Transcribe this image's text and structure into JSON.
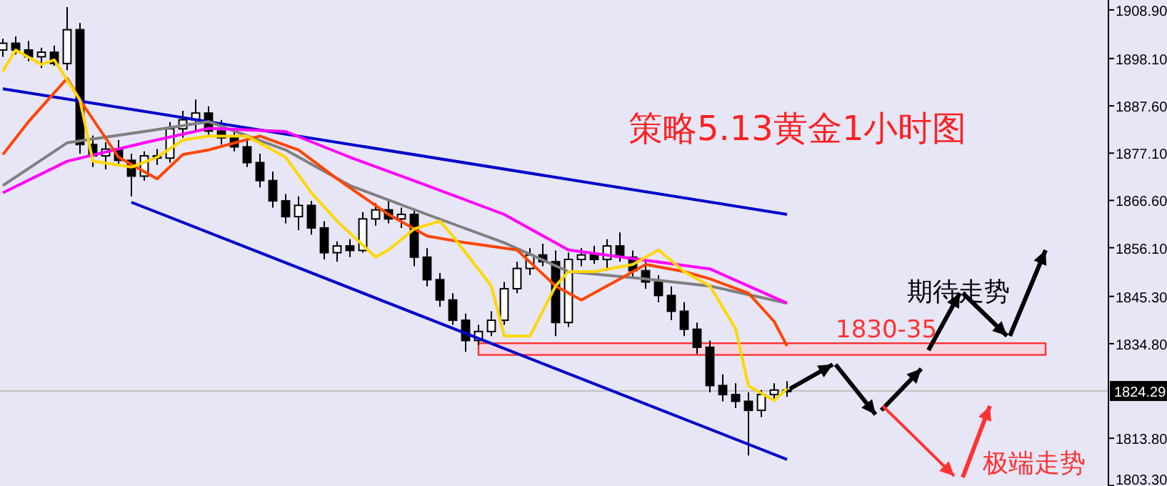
{
  "chart_data": {
    "type": "candlestick",
    "title": "策略5.13黄金1小时图",
    "categories": [
      null,
      null,
      null,
      null,
      null,
      null,
      null,
      null,
      null,
      null,
      null,
      null,
      null,
      null,
      null,
      null,
      null,
      null,
      null,
      null,
      null,
      null,
      null,
      null,
      null,
      null,
      null,
      null,
      null,
      null,
      null,
      null,
      null,
      null,
      null,
      null,
      null,
      null,
      null,
      null,
      null,
      null,
      null,
      null,
      null,
      null,
      null,
      null,
      null,
      null,
      null,
      null,
      null,
      null,
      null,
      null,
      null,
      null,
      null,
      null,
      null,
      null
    ],
    "ohlc": [
      [
        1900.0,
        1902.5,
        1898.5,
        1901.5
      ],
      [
        1901.5,
        1903.0,
        1899.0,
        1900.0
      ],
      [
        1900.0,
        1902.0,
        1897.5,
        1898.5
      ],
      [
        1898.5,
        1900.5,
        1896.0,
        1899.5
      ],
      [
        1899.5,
        1901.0,
        1896.5,
        1897.0
      ],
      [
        1897.0,
        1909.5,
        1895.5,
        1904.5
      ],
      [
        1904.5,
        1906.0,
        1877.0,
        1879.0
      ],
      [
        1879.0,
        1881.0,
        1874.0,
        1876.5
      ],
      [
        1876.5,
        1879.5,
        1873.5,
        1878.0
      ],
      [
        1878.0,
        1880.0,
        1874.5,
        1875.5
      ],
      [
        1875.5,
        1877.0,
        1867.5,
        1872.0
      ],
      [
        1872.0,
        1877.5,
        1871.0,
        1876.5
      ],
      [
        1876.5,
        1878.0,
        1874.5,
        1876.0
      ],
      [
        1876.0,
        1884.0,
        1875.0,
        1882.5
      ],
      [
        1882.5,
        1886.5,
        1880.5,
        1884.5
      ],
      [
        1884.5,
        1889.0,
        1882.0,
        1886.0
      ],
      [
        1886.0,
        1887.5,
        1881.0,
        1882.0
      ],
      [
        1882.0,
        1884.5,
        1879.0,
        1880.5
      ],
      [
        1880.5,
        1882.0,
        1877.5,
        1878.5
      ],
      [
        1878.5,
        1880.0,
        1874.0,
        1875.0
      ],
      [
        1875.0,
        1877.0,
        1869.5,
        1871.0
      ],
      [
        1871.0,
        1873.0,
        1865.0,
        1866.5
      ],
      [
        1866.5,
        1868.0,
        1861.5,
        1863.0
      ],
      [
        1863.0,
        1867.5,
        1860.0,
        1865.5
      ],
      [
        1865.5,
        1866.5,
        1859.0,
        1860.5
      ],
      [
        1860.5,
        1862.0,
        1853.5,
        1855.0
      ],
      [
        1855.0,
        1857.5,
        1853.0,
        1856.5
      ],
      [
        1856.5,
        1858.0,
        1854.0,
        1855.5
      ],
      [
        1855.5,
        1864.0,
        1855.0,
        1862.5
      ],
      [
        1862.5,
        1866.0,
        1861.0,
        1864.5
      ],
      [
        1864.5,
        1866.5,
        1861.5,
        1862.5
      ],
      [
        1862.5,
        1865.0,
        1860.5,
        1863.5
      ],
      [
        1863.5,
        1864.5,
        1852.0,
        1854.0
      ],
      [
        1854.0,
        1856.0,
        1847.5,
        1849.0
      ],
      [
        1849.0,
        1850.5,
        1843.0,
        1844.5
      ],
      [
        1844.5,
        1846.0,
        1839.0,
        1840.0
      ],
      [
        1840.0,
        1841.5,
        1833.0,
        1835.5
      ],
      [
        1835.5,
        1839.0,
        1834.5,
        1837.5
      ],
      [
        1837.5,
        1842.0,
        1836.5,
        1840.0
      ],
      [
        1840.0,
        1848.5,
        1839.0,
        1847.0
      ],
      [
        1847.0,
        1853.0,
        1846.0,
        1851.5
      ],
      [
        1851.5,
        1856.0,
        1850.0,
        1854.5
      ],
      [
        1854.5,
        1857.0,
        1852.0,
        1853.0
      ],
      [
        1853.0,
        1855.5,
        1836.5,
        1839.5
      ],
      [
        1839.5,
        1855.0,
        1838.5,
        1853.5
      ],
      [
        1853.5,
        1856.0,
        1852.0,
        1854.5
      ],
      [
        1854.5,
        1856.5,
        1852.5,
        1853.5
      ],
      [
        1853.5,
        1858.0,
        1851.0,
        1856.5
      ],
      [
        1856.5,
        1859.5,
        1853.0,
        1854.0
      ],
      [
        1854.0,
        1855.5,
        1849.5,
        1851.0
      ],
      [
        1851.0,
        1853.0,
        1847.0,
        1848.5
      ],
      [
        1848.5,
        1850.0,
        1844.0,
        1845.5
      ],
      [
        1845.5,
        1847.5,
        1840.0,
        1842.0
      ],
      [
        1842.0,
        1844.0,
        1836.5,
        1838.0
      ],
      [
        1838.0,
        1839.5,
        1832.5,
        1834.0
      ],
      [
        1834.0,
        1835.5,
        1824.0,
        1825.5
      ],
      [
        1825.5,
        1828.0,
        1822.0,
        1823.5
      ],
      [
        1823.5,
        1826.0,
        1820.5,
        1822.0
      ],
      [
        1822.0,
        1824.0,
        1810.0,
        1820.0
      ],
      [
        1820.0,
        1824.5,
        1818.5,
        1823.5
      ],
      [
        1823.5,
        1826.0,
        1822.0,
        1824.5
      ],
      [
        1824.5,
        1826.5,
        1823.0,
        1824.29
      ]
    ],
    "ylim": [
      1803.2,
      1911.1
    ],
    "tick_labels": "y",
    "yticks": [
      {
        "value": 1908.9,
        "label": "1908.90"
      },
      {
        "value": 1898.1,
        "label": "1898.10"
      },
      {
        "value": 1887.6,
        "label": "1887.60"
      },
      {
        "value": 1877.1,
        "label": "1877.10"
      },
      {
        "value": 1866.6,
        "label": "1866.60"
      },
      {
        "value": 1856.1,
        "label": "1856.10"
      },
      {
        "value": 1845.3,
        "label": "1845.30"
      },
      {
        "value": 1834.8,
        "label": "1834.80"
      },
      {
        "value": 1813.8,
        "label": "1813.80"
      },
      {
        "value": 1803.3,
        "label": "1803.30"
      }
    ],
    "series": [
      {
        "type": "line",
        "color": "#0000cc",
        "values": [
          1891.4,
          null,
          null,
          null,
          null,
          null,
          null,
          null,
          null,
          null,
          null,
          null,
          null,
          null,
          null,
          null,
          null,
          null,
          null,
          null,
          null,
          null,
          null,
          null,
          null,
          null,
          null,
          null,
          null,
          null,
          null,
          null,
          null,
          null,
          null,
          null,
          null,
          null,
          null,
          null,
          null,
          null,
          null,
          null,
          null,
          null,
          null,
          null,
          null,
          null,
          null,
          null,
          null,
          null,
          null,
          null,
          null,
          null,
          null,
          null,
          null,
          1863.5
        ]
      },
      {
        "type": "line",
        "color": "#0000cc",
        "values": [
          null,
          null,
          null,
          null,
          null,
          null,
          null,
          null,
          null,
          null,
          1866.2,
          null,
          null,
          null,
          null,
          null,
          null,
          null,
          null,
          null,
          null,
          null,
          null,
          null,
          null,
          null,
          null,
          null,
          null,
          null,
          null,
          null,
          null,
          null,
          null,
          null,
          null,
          null,
          null,
          null,
          null,
          null,
          null,
          null,
          null,
          null,
          null,
          null,
          null,
          null,
          null,
          null,
          null,
          null,
          null,
          null,
          null,
          null,
          null,
          null,
          null,
          1809.1
        ]
      },
      {
        "type": "line",
        "color": "#808080",
        "values": [
          1869.9,
          null,
          null,
          null,
          null,
          1879.4,
          null,
          null,
          null,
          null,
          null,
          1881.9,
          null,
          null,
          null,
          null,
          1884.1,
          null,
          null,
          null,
          null,
          null,
          1877.8,
          null,
          null,
          null,
          null,
          1869.9,
          null,
          null,
          null,
          null,
          null,
          1863.5,
          null,
          null,
          null,
          null,
          null,
          1857.2,
          null,
          null,
          null,
          null,
          1850.8,
          null,
          null,
          null,
          null,
          null,
          1849.2,
          null,
          null,
          null,
          null,
          1847.6,
          null,
          null,
          null,
          null,
          null,
          1843.8
        ]
      },
      {
        "type": "line",
        "color": "#ff00ff",
        "values": [
          1868.3,
          null,
          null,
          null,
          null,
          1875.3,
          null,
          null,
          null,
          null,
          null,
          1879.4,
          null,
          null,
          null,
          null,
          1882.6,
          null,
          null,
          null,
          null,
          null,
          1881.9,
          null,
          null,
          null,
          null,
          1876.2,
          null,
          null,
          null,
          null,
          null,
          1869.9,
          null,
          null,
          null,
          null,
          null,
          1863.5,
          null,
          null,
          null,
          null,
          1855.6,
          null,
          null,
          null,
          null,
          null,
          1853.3,
          null,
          null,
          null,
          null,
          1851.4,
          null,
          null,
          null,
          null,
          null,
          1843.8
        ]
      },
      {
        "type": "line",
        "color": "#ff4500",
        "values": [
          1876.8,
          null,
          1884.1,
          null,
          null,
          1893.7,
          1888.9,
          null,
          null,
          1876.2,
          null,
          null,
          1871.4,
          null,
          1876.8,
          null,
          1877.8,
          null,
          null,
          null,
          1880.9,
          null,
          null,
          1877.8,
          null,
          null,
          1871.4,
          null,
          null,
          null,
          1863.5,
          null,
          null,
          1858.7,
          null,
          null,
          1857.2,
          null,
          null,
          null,
          1855.6,
          null,
          null,
          1847.6,
          null,
          1844.5,
          null,
          null,
          1849.2,
          null,
          1852.4,
          null,
          null,
          1850.8,
          null,
          1849.2,
          null,
          null,
          1846.0,
          null,
          1839.7,
          1834.3
        ]
      },
      {
        "type": "line",
        "color": "#ffd700",
        "values": [
          1895.3,
          1900.0,
          null,
          1896.8,
          1897.8,
          null,
          1888.9,
          1875.3,
          null,
          null,
          1874.0,
          null,
          1876.2,
          null,
          1880.0,
          null,
          1880.9,
          null,
          null,
          1880.9,
          null,
          null,
          1876.2,
          null,
          1868.3,
          null,
          1862.0,
          null,
          null,
          1854.0,
          1855.6,
          null,
          1860.3,
          null,
          1862.0,
          1858.7,
          null,
          null,
          1847.6,
          1836.5,
          null,
          1836.5,
          null,
          1847.6,
          1850.8,
          null,
          1850.8,
          null,
          null,
          1852.4,
          null,
          1855.6,
          null,
          1850.8,
          null,
          1847.6,
          null,
          1838.1,
          1825.4,
          null,
          1822.2,
          1824.8
        ]
      }
    ],
    "ref_lines": [
      {
        "axis": "y",
        "value": 1824.29,
        "label": "1824.29",
        "color": "#c0c0c0"
      }
    ],
    "bands": [
      {
        "axis": "y",
        "from": 1832.3,
        "to": 1834.9,
        "label": "1830-35",
        "color": "#ff3333"
      }
    ],
    "annotations": [
      "期待走势",
      "极端走势"
    ]
  }
}
